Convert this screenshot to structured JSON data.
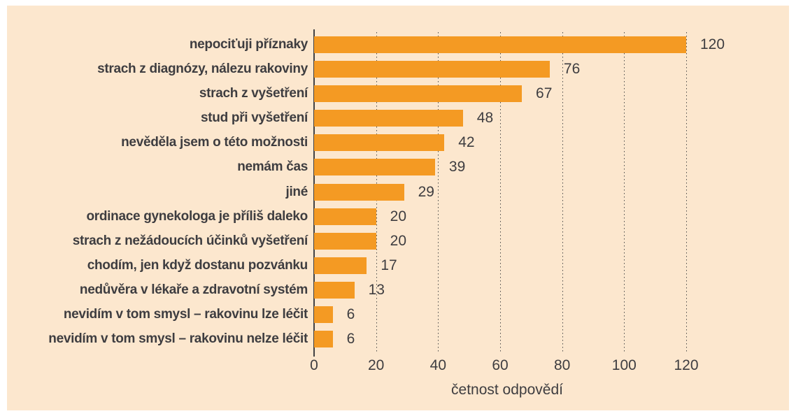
{
  "chart_data": {
    "type": "bar",
    "orientation": "horizontal",
    "categories": [
      "nepociťuji příznaky",
      "strach z diagnózy, nálezu rakoviny",
      "strach z vyšetření",
      "stud při vyšetření",
      "nevěděla jsem o této možnosti",
      "nemám čas",
      "jiné",
      "ordinace gynekologa je příliš daleko",
      "strach z nežádoucích účinků vyšetření",
      "chodím, jen když dostanu pozvánku",
      "nedůvěra v lékaře a zdravotní systém",
      "nevidím v tom smysl – rakovinu lze léčit",
      "nevidím v tom smysl – rakovinu nelze léčit"
    ],
    "values": [
      120,
      76,
      67,
      48,
      42,
      39,
      29,
      20,
      20,
      17,
      13,
      6,
      6
    ],
    "title": "",
    "xlabel": "četnost odpovědí",
    "ylabel": "",
    "xlim": [
      0,
      120
    ],
    "xticks": [
      0,
      20,
      40,
      60,
      80,
      100,
      120
    ],
    "grid": "vertical dotted lines at each x tick",
    "legend_position": "none",
    "data_labels": "value shown right of each bar",
    "colors": {
      "bar": "#f49a23",
      "panel_background": "#fce7ce",
      "page_background": "#ffffff",
      "text": "#3e3d40",
      "axis_line": "#414042",
      "gridline": "#4a4a49"
    }
  }
}
